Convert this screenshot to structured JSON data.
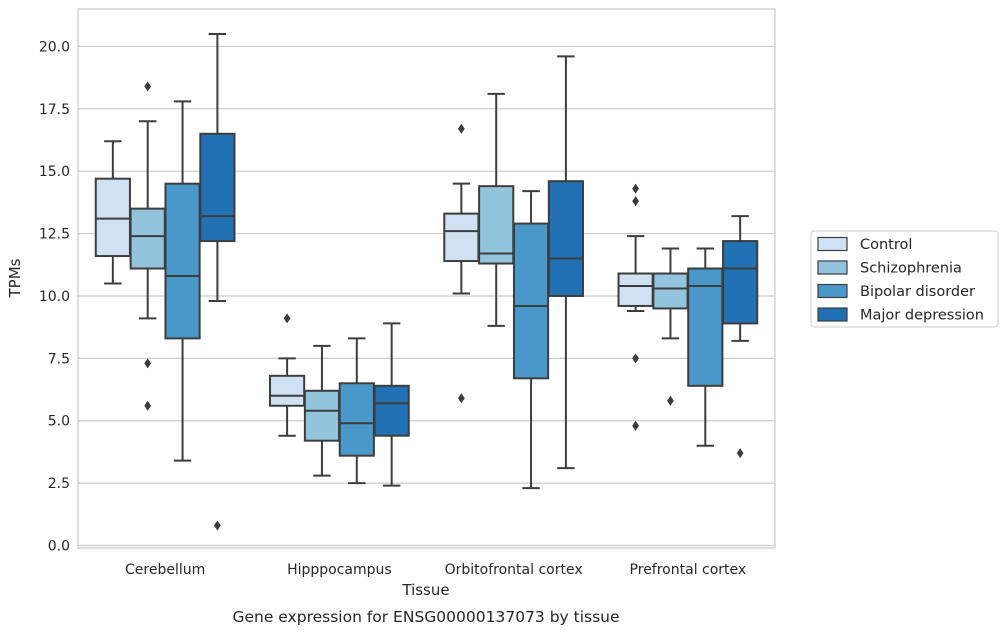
{
  "chart_data": {
    "type": "box",
    "caption": "Gene expression for ENSG00000137073 by tissue",
    "xlabel": "Tissue",
    "ylabel": "TPMs",
    "ylim": [
      -0.1,
      21.5
    ],
    "yticks": [
      "0.0",
      "2.5",
      "5.0",
      "7.5",
      "10.0",
      "12.5",
      "15.0",
      "17.5",
      "20.0"
    ],
    "ytick_values": [
      0,
      2.5,
      5,
      7.5,
      10,
      12.5,
      15,
      17.5,
      20
    ],
    "grid": "horizontal",
    "legend_position": "right",
    "categories": [
      "Cerebellum",
      "Hipppocampus",
      "Orbitofrontal cortex",
      "Prefrontal cortex"
    ],
    "series": [
      {
        "name": "Control",
        "color": "#cfe1f2",
        "boxes": [
          {
            "whislo": 10.5,
            "q1": 11.6,
            "med": 13.1,
            "q3": 14.7,
            "whishi": 16.2,
            "fliers": []
          },
          {
            "whislo": 4.4,
            "q1": 5.6,
            "med": 6.0,
            "q3": 6.8,
            "whishi": 7.5,
            "fliers": [
              9.1
            ]
          },
          {
            "whislo": 10.1,
            "q1": 11.4,
            "med": 12.6,
            "q3": 13.3,
            "whishi": 14.5,
            "fliers": [
              16.7,
              5.9
            ]
          },
          {
            "whislo": 9.4,
            "q1": 9.6,
            "med": 10.4,
            "q3": 10.9,
            "whishi": 12.4,
            "fliers": [
              14.3,
              13.8,
              7.5,
              4.8
            ]
          }
        ]
      },
      {
        "name": "Schizophrenia",
        "color": "#93c4de",
        "boxes": [
          {
            "whislo": 9.1,
            "q1": 11.1,
            "med": 12.4,
            "q3": 13.5,
            "whishi": 17.0,
            "fliers": [
              18.4,
              7.3,
              5.6
            ]
          },
          {
            "whislo": 2.8,
            "q1": 4.2,
            "med": 5.4,
            "q3": 6.2,
            "whishi": 8.0,
            "fliers": []
          },
          {
            "whislo": 8.8,
            "q1": 11.3,
            "med": 11.7,
            "q3": 14.4,
            "whishi": 18.1,
            "fliers": []
          },
          {
            "whislo": 8.3,
            "q1": 9.5,
            "med": 10.3,
            "q3": 10.9,
            "whishi": 11.9,
            "fliers": [
              5.8
            ]
          }
        ]
      },
      {
        "name": "Bipolar disorder",
        "color": "#4a98c9",
        "boxes": [
          {
            "whislo": 3.4,
            "q1": 8.3,
            "med": 10.8,
            "q3": 14.5,
            "whishi": 17.8,
            "fliers": []
          },
          {
            "whislo": 2.5,
            "q1": 3.6,
            "med": 4.9,
            "q3": 6.5,
            "whishi": 8.3,
            "fliers": []
          },
          {
            "whislo": 2.3,
            "q1": 6.7,
            "med": 9.6,
            "q3": 12.9,
            "whishi": 14.2,
            "fliers": []
          },
          {
            "whislo": 4.0,
            "q1": 6.4,
            "med": 10.4,
            "q3": 11.1,
            "whishi": 11.9,
            "fliers": []
          }
        ]
      },
      {
        "name": "Major depression",
        "color": "#2271b5",
        "boxes": [
          {
            "whislo": 9.8,
            "q1": 12.2,
            "med": 13.2,
            "q3": 16.5,
            "whishi": 20.5,
            "fliers": [
              0.8
            ]
          },
          {
            "whislo": 2.4,
            "q1": 4.4,
            "med": 5.7,
            "q3": 6.4,
            "whishi": 8.9,
            "fliers": []
          },
          {
            "whislo": 3.1,
            "q1": 10.0,
            "med": 11.5,
            "q3": 14.6,
            "whishi": 19.6,
            "fliers": []
          },
          {
            "whislo": 8.2,
            "q1": 8.9,
            "med": 11.1,
            "q3": 12.2,
            "whishi": 13.2,
            "fliers": [
              3.7
            ]
          }
        ]
      }
    ]
  }
}
